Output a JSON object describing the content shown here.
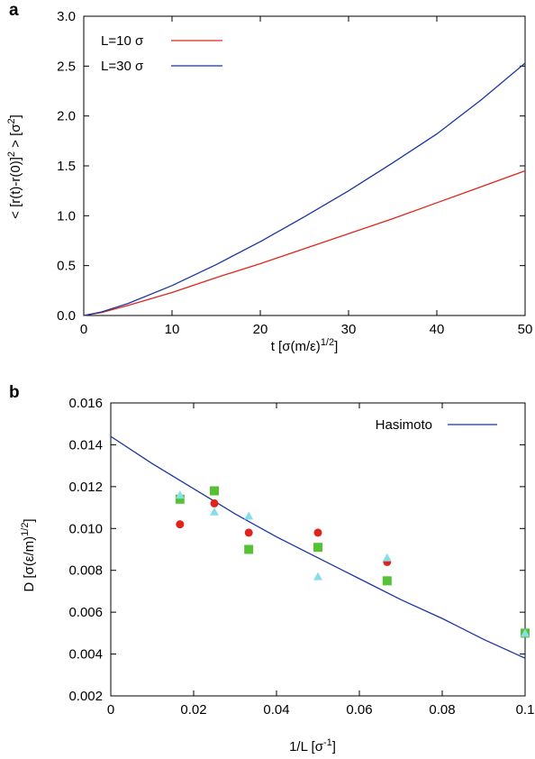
{
  "chart_data": [
    {
      "panel_label": "a",
      "type": "line",
      "title": "",
      "xlabel": "t [σ(m/ε)1/2]",
      "xlabel_main": "t [σ(m/ε)",
      "xlabel_sup": "1/2",
      "xlabel_end": "]",
      "ylabel": "< [r(t)-r(0)]2 > [σ2]",
      "ylabel_parts": {
        "a": "< [r(t)-r(0)]",
        "sup1": "2",
        "b": " > [σ",
        "sup2": "2",
        "c": "]"
      },
      "xlim": [
        0,
        50
      ],
      "ylim": [
        0,
        3.0
      ],
      "xticks": [
        "0",
        "10",
        "20",
        "30",
        "40",
        "50"
      ],
      "yticks": [
        "0.0",
        "0.5",
        "1.0",
        "1.5",
        "2.0",
        "2.5",
        "3.0"
      ],
      "legend_position": "top-left",
      "grid": false,
      "series": [
        {
          "name": "L=10 σ",
          "color": "#e0241b",
          "x": [
            0,
            2,
            5,
            10,
            15,
            20,
            25,
            30,
            35,
            40,
            45,
            50
          ],
          "y": [
            0,
            0.03,
            0.1,
            0.23,
            0.38,
            0.52,
            0.67,
            0.82,
            0.97,
            1.13,
            1.29,
            1.45
          ]
        },
        {
          "name": "L=30 σ",
          "color": "#1a35a0",
          "x": [
            0,
            2,
            5,
            10,
            15,
            20,
            25,
            30,
            35,
            40,
            45,
            50
          ],
          "y": [
            0,
            0.035,
            0.12,
            0.3,
            0.51,
            0.74,
            0.99,
            1.25,
            1.53,
            1.82,
            2.16,
            2.53
          ]
        }
      ]
    },
    {
      "panel_label": "b",
      "type": "scatter",
      "title": "",
      "xlabel": "1/L [σ-1]",
      "xlabel_main": "1/L [σ",
      "xlabel_sup": "-1",
      "xlabel_end": "]",
      "ylabel": "D [σ(ε/m)1/2]",
      "ylabel_parts": {
        "a": "D [σ(ε/m)",
        "sup1": "1/2",
        "c": "]"
      },
      "xlim": [
        0,
        0.1
      ],
      "ylim": [
        0.002,
        0.016
      ],
      "xticks": [
        "0",
        "0.02",
        "0.04",
        "0.06",
        "0.08",
        "0.1"
      ],
      "yticks": [
        "0.002",
        "0.004",
        "0.006",
        "0.008",
        "0.010",
        "0.012",
        "0.014",
        "0.016"
      ],
      "legend_position": "top-right",
      "grid": false,
      "curve": {
        "name": "Hasimoto",
        "color": "#1a35a0",
        "x": [
          0,
          0.01,
          0.02,
          0.03,
          0.04,
          0.05,
          0.06,
          0.07,
          0.08,
          0.09,
          0.1
        ],
        "y": [
          0.0144,
          0.0131,
          0.0119,
          0.0107,
          0.0096,
          0.0086,
          0.0076,
          0.0066,
          0.0057,
          0.0047,
          0.0038
        ]
      },
      "point_sets": [
        {
          "marker": "circle",
          "color": "#e0241b",
          "x": [
            0.0167,
            0.025,
            0.0333,
            0.05,
            0.0667
          ],
          "y": [
            0.0102,
            0.0112,
            0.0098,
            0.0098,
            0.0084
          ]
        },
        {
          "marker": "square",
          "color": "#55c134",
          "x": [
            0.0167,
            0.025,
            0.0333,
            0.05,
            0.0667,
            0.1
          ],
          "y": [
            0.0114,
            0.0118,
            0.009,
            0.0091,
            0.0075,
            0.005
          ]
        },
        {
          "marker": "triangle",
          "color": "#88dde8",
          "x": [
            0.0167,
            0.025,
            0.0333,
            0.05,
            0.0667,
            0.1
          ],
          "y": [
            0.0116,
            0.0108,
            0.0106,
            0.0077,
            0.0086,
            0.005
          ]
        }
      ]
    }
  ]
}
